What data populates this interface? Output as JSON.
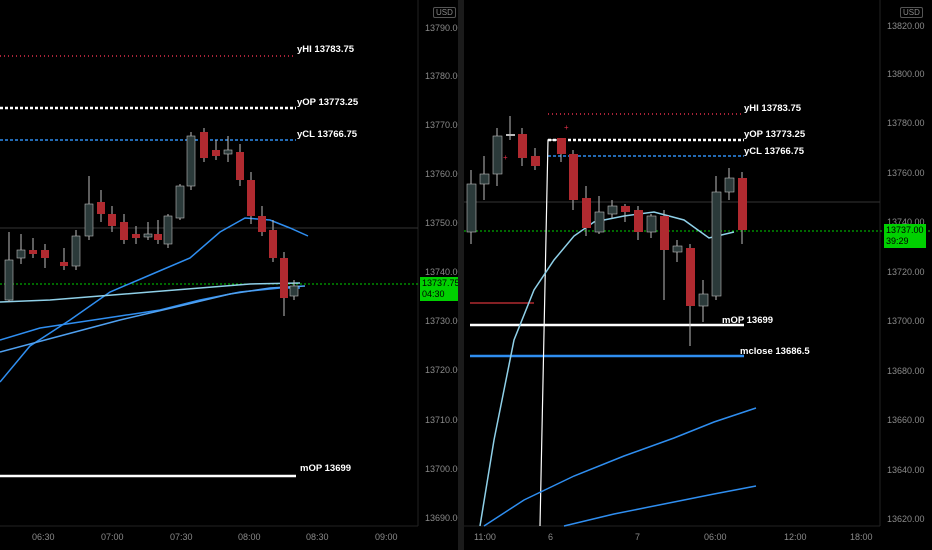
{
  "left": {
    "currency": "USD",
    "y_ticks": [
      "13790.00",
      "13780.00",
      "13770.00",
      "13760.00",
      "13750.00",
      "13740.00",
      "13730.00",
      "13720.00",
      "13710.00",
      "13700.00",
      "13690.00"
    ],
    "x_ticks": [
      "06:30",
      "07:00",
      "07:30",
      "08:00",
      "08:30",
      "09:00"
    ],
    "current_price": "13737.75",
    "countdown": "04:30",
    "levels": [
      {
        "label": "yHI 13783.75",
        "color": "#e0304a"
      },
      {
        "label": "yOP 13773.25",
        "color": "#ffffff"
      },
      {
        "label": "yCL 13766.75",
        "color": "#2f8ef0"
      },
      {
        "label": "mOP 13699",
        "color": "#ffffff"
      }
    ]
  },
  "right": {
    "currency": "USD",
    "y_ticks": [
      "13820.00",
      "13800.00",
      "13780.00",
      "13760.00",
      "13740.00",
      "13720.00",
      "13700.00",
      "13680.00",
      "13660.00",
      "13640.00",
      "13620.00"
    ],
    "x_ticks": [
      "11:00",
      "6",
      "7",
      "06:00",
      "12:00",
      "18:00"
    ],
    "current_price": "13737.00",
    "countdown": "39:29",
    "levels": [
      {
        "label": "yHI 13783.75",
        "color": "#e0304a"
      },
      {
        "label": "yOP 13773.25",
        "color": "#ffffff"
      },
      {
        "label": "yCL 13766.75",
        "color": "#2f8ef0"
      },
      {
        "label": "mOP 13699",
        "color": "#ffffff"
      },
      {
        "label": "mclose 13686.5",
        "color": "#2f8ef0"
      }
    ]
  },
  "colors": {
    "up": "#2b3a3a",
    "down": "#b02a30",
    "current_line": "#00d000",
    "ma": "#2f8ef0",
    "ma_light": "#8fd0e8"
  }
}
